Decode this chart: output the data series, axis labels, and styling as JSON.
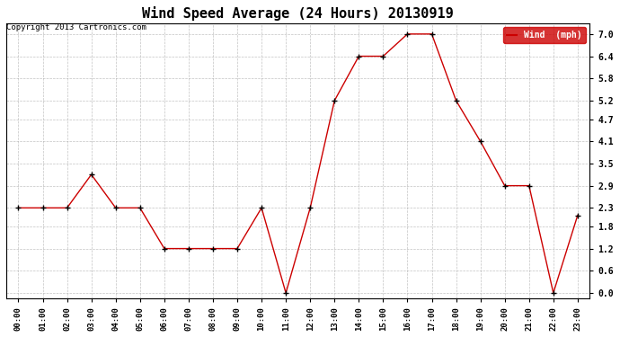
{
  "title": "Wind Speed Average (24 Hours) 20130919",
  "copyright": "Copyright 2013 Cartronics.com",
  "legend_label": "Wind  (mph)",
  "x_labels": [
    "00:00",
    "01:00",
    "02:00",
    "03:00",
    "04:00",
    "05:00",
    "06:00",
    "07:00",
    "08:00",
    "09:00",
    "10:00",
    "11:00",
    "12:00",
    "13:00",
    "14:00",
    "15:00",
    "16:00",
    "17:00",
    "18:00",
    "19:00",
    "20:00",
    "21:00",
    "22:00",
    "23:00"
  ],
  "y_values": [
    2.3,
    2.3,
    2.3,
    3.2,
    2.3,
    2.3,
    1.2,
    1.2,
    1.2,
    1.2,
    2.3,
    0.0,
    2.3,
    5.2,
    6.4,
    6.4,
    7.0,
    7.0,
    5.2,
    4.1,
    2.9,
    2.9,
    0.0,
    2.1
  ],
  "line_color": "#cc0000",
  "marker_color": "black",
  "background_color": "#ffffff",
  "grid_color": "#aaaaaa",
  "ylim_min": -0.15,
  "ylim_max": 7.3,
  "yticks": [
    0.0,
    0.6,
    1.2,
    1.8,
    2.3,
    2.9,
    3.5,
    4.1,
    4.7,
    5.2,
    5.8,
    6.4,
    7.0
  ],
  "title_fontsize": 11,
  "legend_bg": "#cc0000",
  "legend_text_color": "white"
}
